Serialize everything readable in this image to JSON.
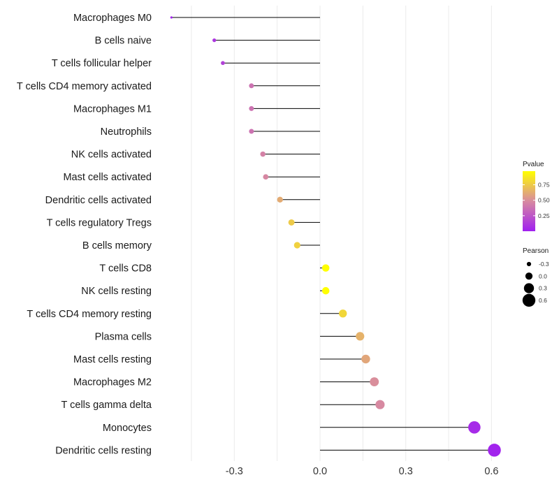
{
  "chart_data": {
    "type": "lollipop",
    "orientation": "horizontal",
    "title": "",
    "xlabel": "",
    "ylabel": "",
    "xlim": [
      -0.52,
      0.66
    ],
    "xticks": [
      -0.3,
      0.0,
      0.3,
      0.6
    ],
    "xtick_labels": [
      "-0.3",
      "0.0",
      "0.3",
      "0.6"
    ],
    "grid": true,
    "categories": [
      "Macrophages M0",
      "B cells naive",
      "T cells follicular helper",
      "T cells CD4 memory activated",
      "Macrophages M1",
      "Neutrophils",
      "NK cells activated",
      "Mast cells activated",
      "Dendritic cells activated",
      "T cells regulatory  Tregs ",
      "B cells memory",
      "T cells CD8",
      "NK cells resting",
      "T cells CD4 memory resting",
      "Plasma cells",
      "Mast cells resting",
      "Macrophages M2",
      "T cells gamma delta",
      "Monocytes",
      "Dendritic cells resting"
    ],
    "pearson": [
      -0.52,
      -0.37,
      -0.34,
      -0.24,
      -0.24,
      -0.24,
      -0.2,
      -0.19,
      -0.14,
      -0.1,
      -0.08,
      0.02,
      0.02,
      0.08,
      0.14,
      0.16,
      0.19,
      0.21,
      0.54,
      0.61
    ],
    "pvalue": [
      0.02,
      0.1,
      0.15,
      0.38,
      0.38,
      0.38,
      0.45,
      0.47,
      0.62,
      0.75,
      0.78,
      0.97,
      0.97,
      0.8,
      0.65,
      0.6,
      0.5,
      0.48,
      0.05,
      0.02
    ],
    "color_legend": {
      "title": "Pvalue",
      "ticks": [
        0.25,
        0.5,
        0.75
      ],
      "tick_labels": [
        "0.25",
        "0.50",
        "0.75"
      ],
      "range": [
        0.0,
        0.97
      ],
      "low_color": "#a020f0",
      "mid_color": "#d88aa0",
      "high_color": "#ffff00"
    },
    "size_legend": {
      "title": "Pearson",
      "values": [
        -0.3,
        0.0,
        0.3,
        0.6
      ],
      "labels": [
        "-0.3",
        "0.0",
        "0.3",
        "0.6"
      ]
    },
    "legend_position": "right"
  }
}
